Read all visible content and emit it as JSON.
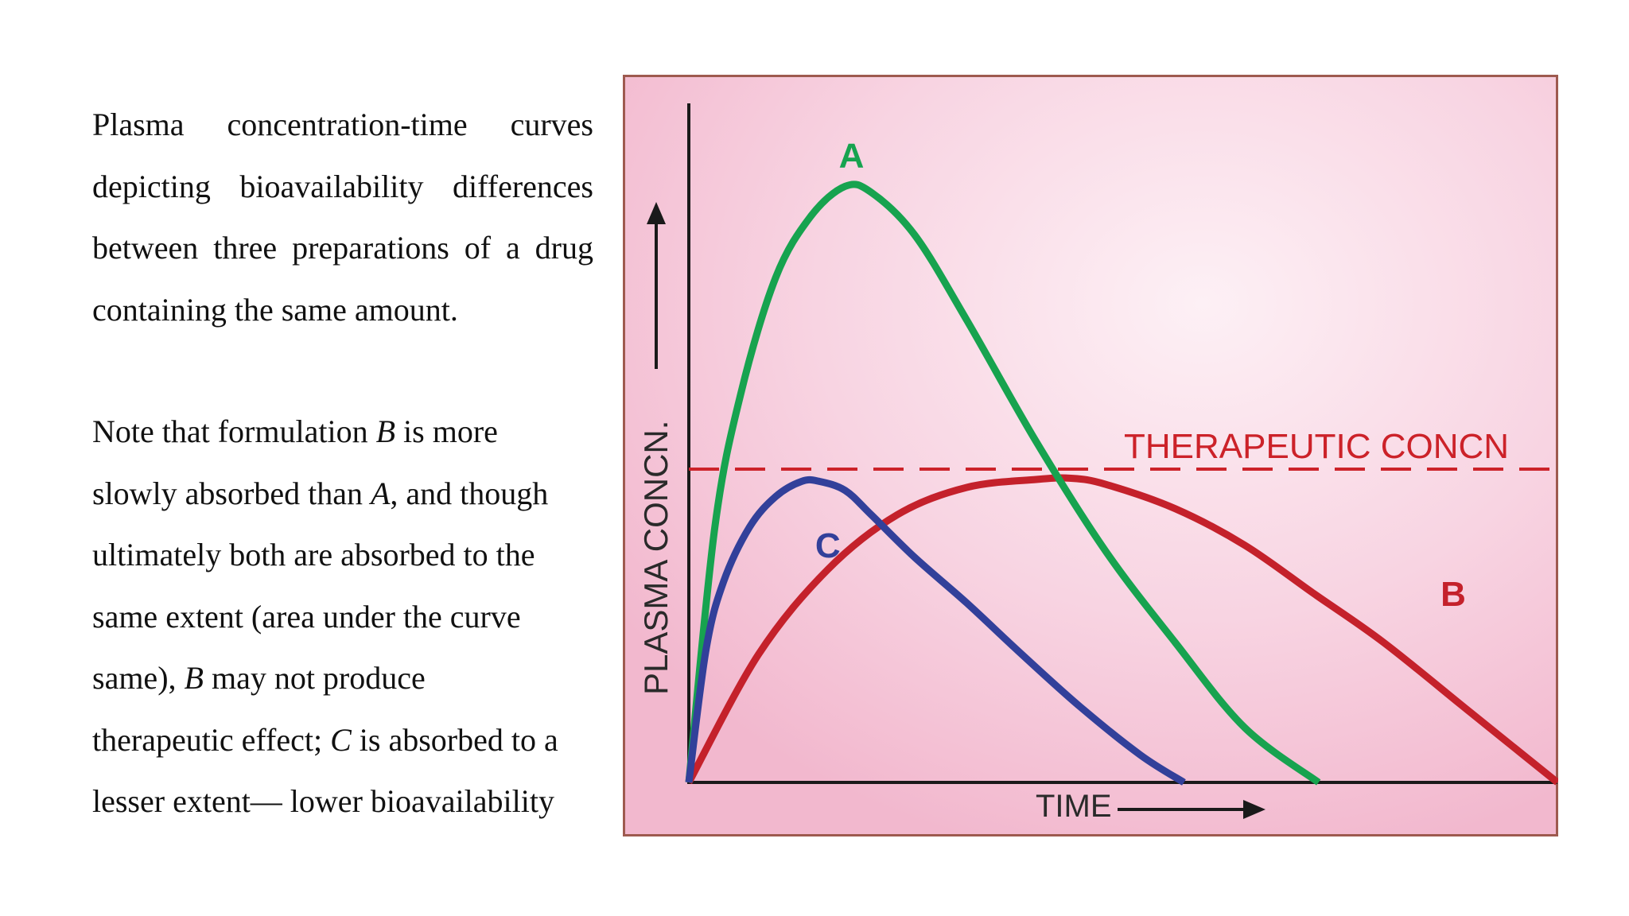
{
  "text": {
    "para1": [
      "Plasma concentration-time curves",
      "depicting bioavailability differences",
      "between three preparations of a drug",
      "containing the same amount."
    ],
    "para2": {
      "l1a": "Note that formulation ",
      "l1b": "B",
      "l1c": " is more",
      "l2a": "slowly absorbed than ",
      "l2b": "A",
      "l2c": ", and though",
      "l3": "ultimately both are absorbed to the",
      "l4": "same extent (area under the curve",
      "l5a": "same), ",
      "l5b": "B",
      "l5c": " may not produce",
      "l6a": "therapeutic effect; ",
      "l6b": "C",
      "l6c": " is absorbed to a",
      "l7": "lesser extent— lower bioavailability"
    }
  },
  "chart_data": {
    "type": "line",
    "xlabel": "TIME",
    "ylabel": "PLASMA CONCN.",
    "xlim": [
      0,
      100
    ],
    "ylim": [
      0,
      100
    ],
    "threshold": {
      "label": "THERAPEUTIC CONCN",
      "value": 51.5,
      "color": "#cc2229"
    },
    "series": [
      {
        "name": "A",
        "color": "#17a34f",
        "x": [
          0,
          3,
          6,
          10,
          14,
          18,
          21,
          26,
          32,
          40,
          48,
          56,
          64,
          72.5
        ],
        "y": [
          0,
          42,
          64,
          83,
          93,
          98,
          97,
          90,
          76,
          56,
          38,
          23,
          9,
          0
        ]
      },
      {
        "name": "B",
        "color": "#c4212b",
        "x": [
          0,
          8,
          16,
          24,
          32,
          40,
          44,
          48,
          56,
          64,
          72,
          80,
          90,
          100
        ],
        "y": [
          0,
          21,
          35,
          44,
          48.5,
          49.8,
          50,
          49,
          45,
          39,
          31,
          23,
          11.5,
          0
        ]
      },
      {
        "name": "C",
        "color": "#32409a",
        "x": [
          0,
          2,
          4,
          7,
          10,
          13,
          15,
          18,
          21,
          26,
          32,
          38,
          45,
          52,
          57
        ],
        "y": [
          0,
          22,
          33,
          42,
          47,
          49.5,
          49.5,
          48,
          44,
          37,
          29.5,
          21.5,
          12.5,
          4.5,
          0
        ]
      }
    ]
  }
}
